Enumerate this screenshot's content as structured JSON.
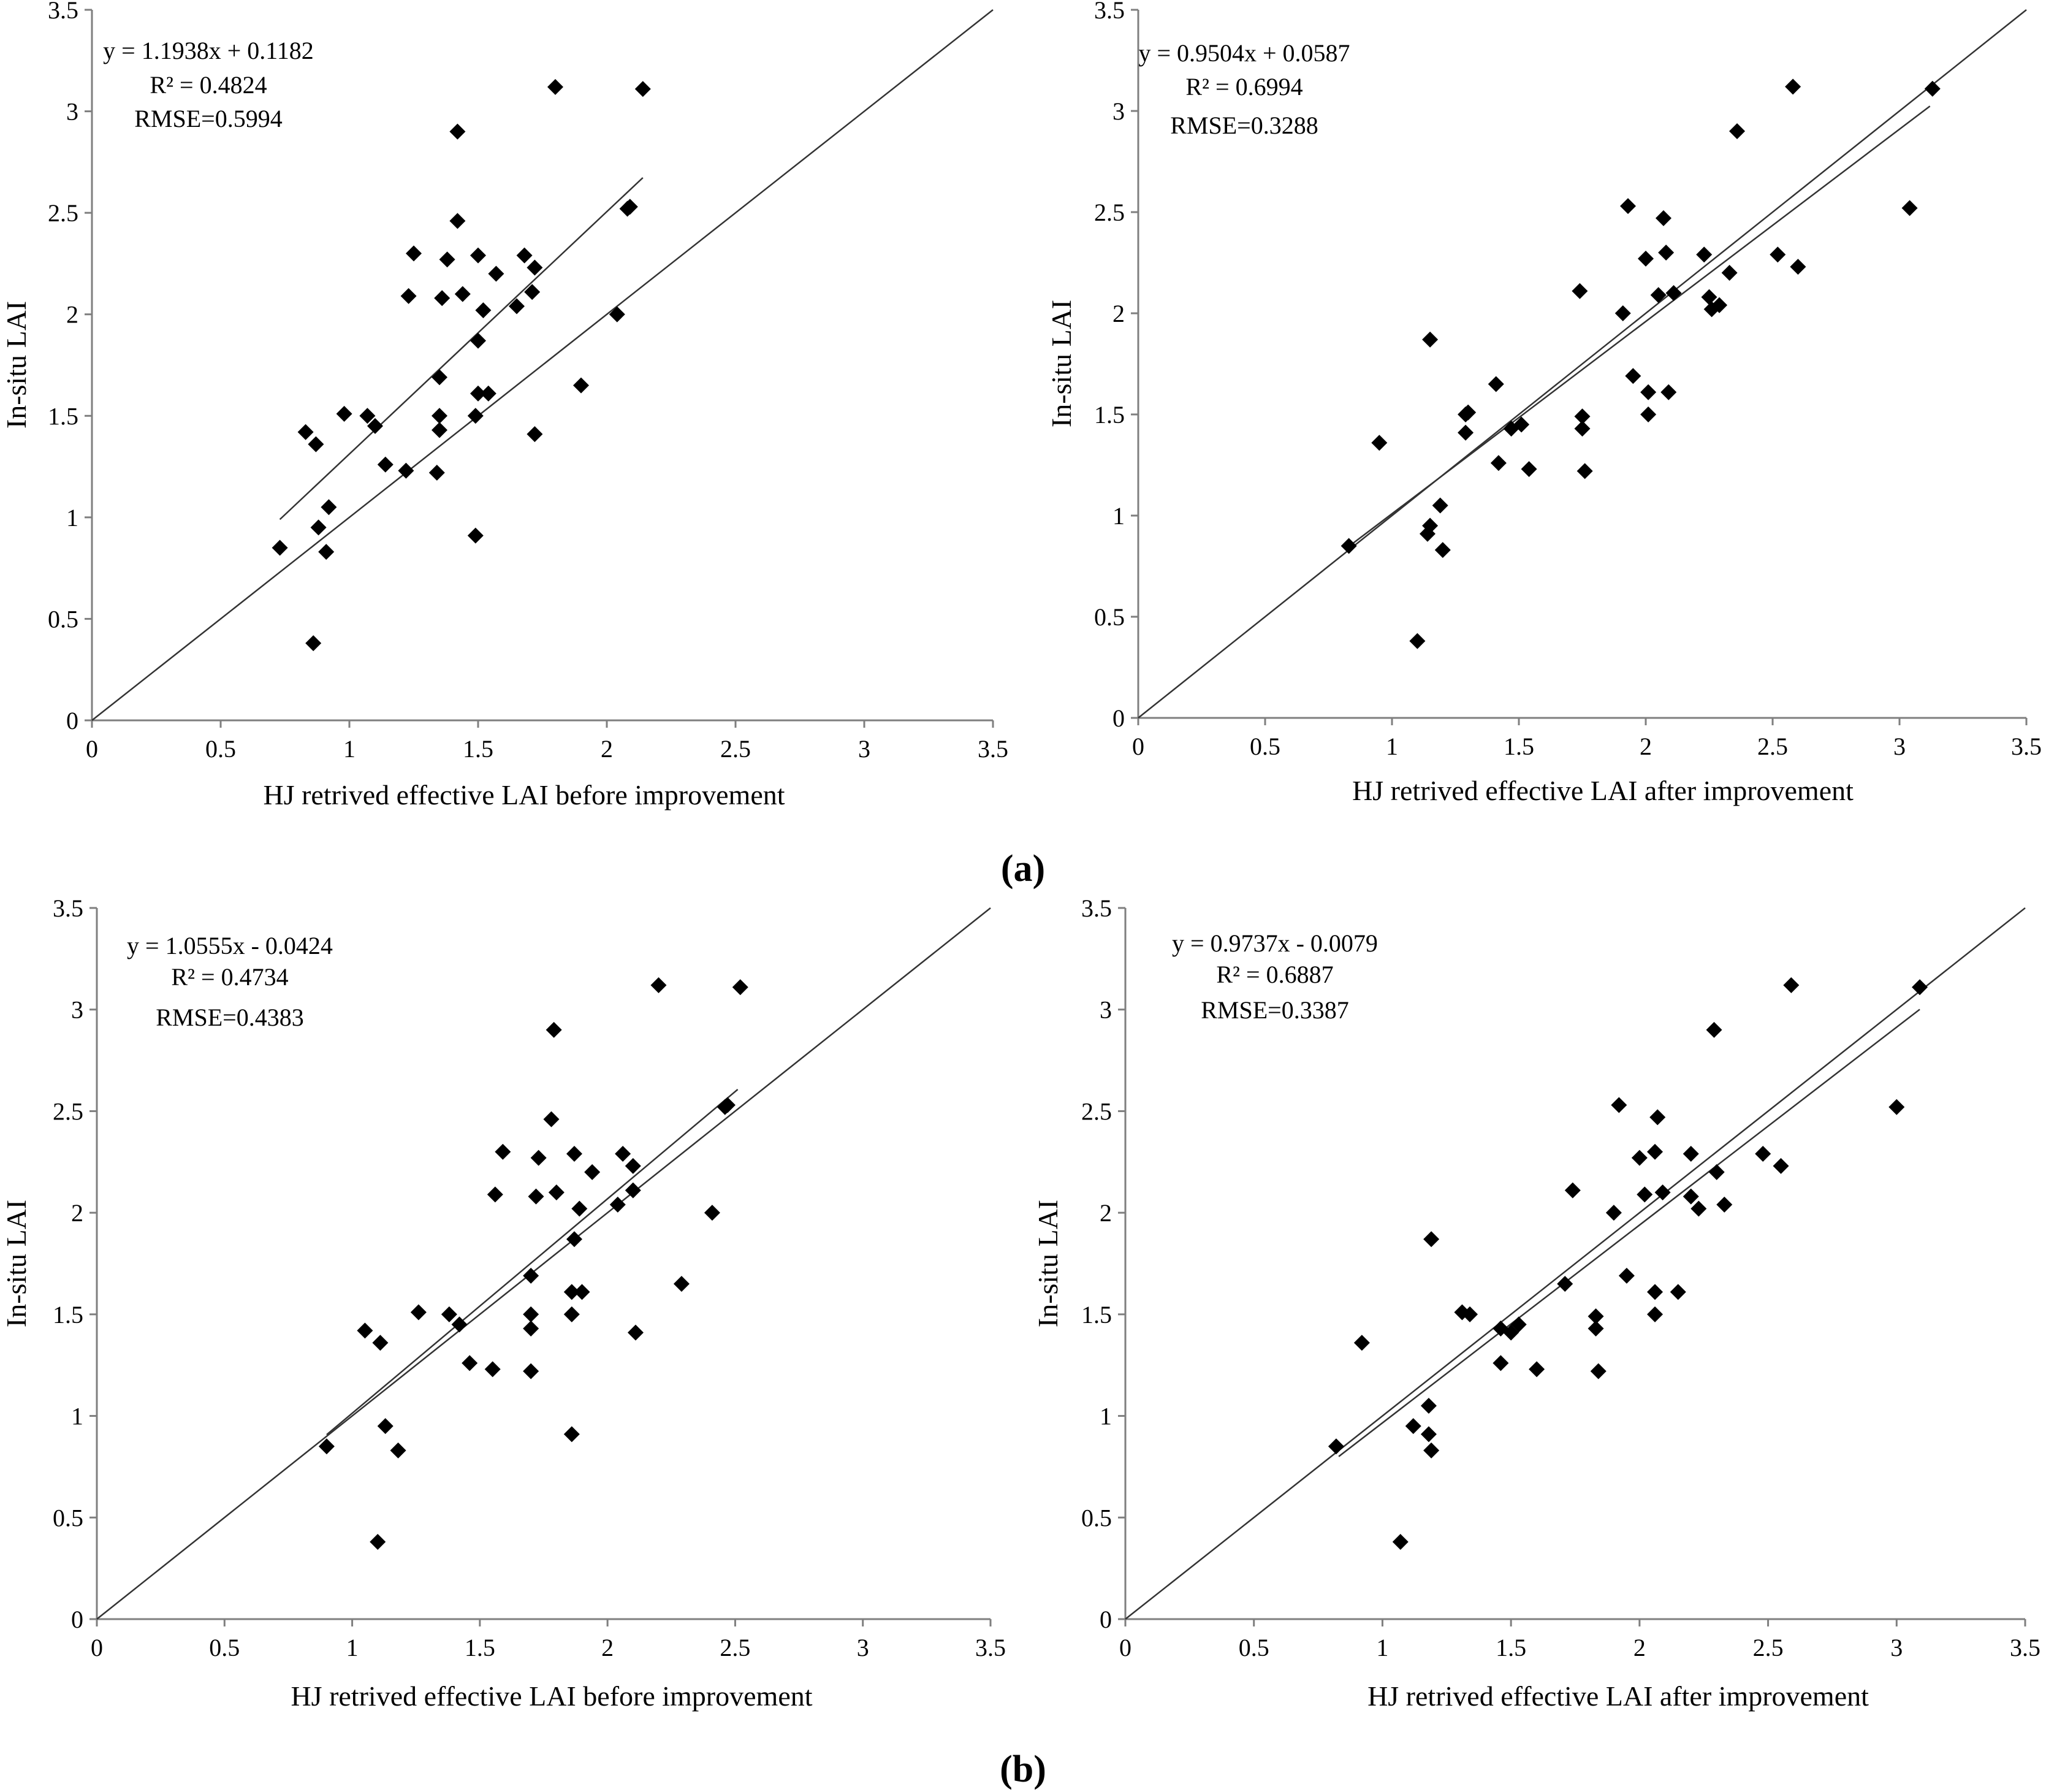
{
  "figure": {
    "panel_labels": [
      "(a)",
      "(b)"
    ]
  },
  "chart_data": [
    {
      "type": "scatter",
      "panel": "a",
      "xlabel": "HJ retrived effective LAI before improvement",
      "ylabel": "In-situ LAI",
      "xlim": [
        0,
        3.5
      ],
      "ylim": [
        0,
        3.5
      ],
      "xticks": [
        "0",
        "0.5",
        "1",
        "1.5",
        "2",
        "2.5",
        "3",
        "3.5"
      ],
      "yticks": [
        "0",
        "0.5",
        "1",
        "1.5",
        "2",
        "2.5",
        "3",
        "3.5"
      ],
      "grid": false,
      "annotations": [
        "y = 1.1938x + 0.1182",
        "R² = 0.4824",
        "RMSE=0.5994"
      ],
      "fit": {
        "slope": 1.1938,
        "intercept": 0.1182,
        "x_range": [
          0.73,
          2.14
        ]
      },
      "reference_line": "1:1",
      "points": [
        [
          0.73,
          0.85
        ],
        [
          0.83,
          1.42
        ],
        [
          0.86,
          0.38
        ],
        [
          0.87,
          1.36
        ],
        [
          0.88,
          0.95
        ],
        [
          0.91,
          0.83
        ],
        [
          0.92,
          1.05
        ],
        [
          0.98,
          1.51
        ],
        [
          1.07,
          1.5
        ],
        [
          1.1,
          1.45
        ],
        [
          1.14,
          1.26
        ],
        [
          1.22,
          1.23
        ],
        [
          1.23,
          2.09
        ],
        [
          1.25,
          2.3
        ],
        [
          1.34,
          1.22
        ],
        [
          1.35,
          1.69
        ],
        [
          1.35,
          1.5
        ],
        [
          1.35,
          1.43
        ],
        [
          1.36,
          2.08
        ],
        [
          1.38,
          2.27
        ],
        [
          1.42,
          2.9
        ],
        [
          1.42,
          2.46
        ],
        [
          1.44,
          2.1
        ],
        [
          1.49,
          0.91
        ],
        [
          1.49,
          1.5
        ],
        [
          1.5,
          1.87
        ],
        [
          1.5,
          1.61
        ],
        [
          1.5,
          2.29
        ],
        [
          1.52,
          2.02
        ],
        [
          1.54,
          1.61
        ],
        [
          1.57,
          2.2
        ],
        [
          1.65,
          2.04
        ],
        [
          1.68,
          2.29
        ],
        [
          1.71,
          2.11
        ],
        [
          1.72,
          2.23
        ],
        [
          1.72,
          1.41
        ],
        [
          1.8,
          3.12
        ],
        [
          1.9,
          1.65
        ],
        [
          2.04,
          2.0
        ],
        [
          2.08,
          2.52
        ],
        [
          2.09,
          2.53
        ],
        [
          2.14,
          3.11
        ]
      ]
    },
    {
      "type": "scatter",
      "panel": "a",
      "xlabel": "HJ retrived  effective LAI after improvement",
      "ylabel": "In-situ LAI",
      "xlim": [
        0,
        3.5
      ],
      "ylim": [
        0,
        3.5
      ],
      "xticks": [
        "0",
        "0.5",
        "1",
        "1.5",
        "2",
        "2.5",
        "3",
        "3.5"
      ],
      "yticks": [
        "0",
        "0.5",
        "1",
        "1.5",
        "2",
        "2.5",
        "3",
        "3.5"
      ],
      "grid": false,
      "annotations": [
        "y = 0.9504x + 0.0587",
        "R² = 0.6994",
        "RMSE=0.3288"
      ],
      "fit": {
        "slope": 0.9504,
        "intercept": 0.0587,
        "x_range": [
          0.84,
          3.12
        ]
      },
      "reference_line": "1:1",
      "points": [
        [
          0.83,
          0.85
        ],
        [
          0.95,
          1.36
        ],
        [
          1.1,
          0.38
        ],
        [
          1.14,
          0.91
        ],
        [
          1.15,
          0.95
        ],
        [
          1.15,
          1.87
        ],
        [
          1.19,
          1.05
        ],
        [
          1.2,
          0.83
        ],
        [
          1.29,
          1.5
        ],
        [
          1.29,
          1.41
        ],
        [
          1.3,
          1.51
        ],
        [
          1.41,
          1.65
        ],
        [
          1.42,
          1.26
        ],
        [
          1.47,
          1.43
        ],
        [
          1.51,
          1.45
        ],
        [
          1.54,
          1.23
        ],
        [
          1.74,
          2.11
        ],
        [
          1.75,
          1.49
        ],
        [
          1.75,
          1.43
        ],
        [
          1.76,
          1.22
        ],
        [
          1.91,
          2.0
        ],
        [
          1.93,
          2.53
        ],
        [
          1.95,
          1.69
        ],
        [
          2.0,
          2.27
        ],
        [
          2.01,
          1.61
        ],
        [
          2.01,
          1.5
        ],
        [
          2.05,
          2.09
        ],
        [
          2.07,
          2.47
        ],
        [
          2.08,
          2.3
        ],
        [
          2.09,
          1.61
        ],
        [
          2.11,
          2.1
        ],
        [
          2.23,
          2.29
        ],
        [
          2.25,
          2.08
        ],
        [
          2.26,
          2.02
        ],
        [
          2.29,
          2.04
        ],
        [
          2.33,
          2.2
        ],
        [
          2.36,
          2.9
        ],
        [
          2.52,
          2.29
        ],
        [
          2.58,
          3.12
        ],
        [
          2.6,
          2.23
        ],
        [
          3.04,
          2.52
        ],
        [
          3.13,
          3.11
        ]
      ]
    },
    {
      "type": "scatter",
      "panel": "b",
      "xlabel": "HJ retrived  effective LAI before improvement",
      "ylabel": "In-situ LAI",
      "xlim": [
        0,
        3.5
      ],
      "ylim": [
        0,
        3.5
      ],
      "xticks": [
        "0",
        "0.5",
        "1",
        "1.5",
        "2",
        "2.5",
        "3",
        "3.5"
      ],
      "yticks": [
        "0",
        "0.5",
        "1",
        "1.5",
        "2",
        "2.5",
        "3",
        "3.5"
      ],
      "grid": false,
      "annotations": [
        "y = 1.0555x - 0.0424",
        "R² = 0.4734",
        "RMSE=0.4383"
      ],
      "fit": {
        "slope": 1.0555,
        "intercept": -0.0424,
        "x_range": [
          0.9,
          2.51
        ]
      },
      "reference_line": "1:1",
      "points": [
        [
          0.9,
          0.85
        ],
        [
          1.05,
          1.42
        ],
        [
          1.1,
          0.38
        ],
        [
          1.11,
          1.36
        ],
        [
          1.13,
          0.95
        ],
        [
          1.18,
          0.83
        ],
        [
          1.26,
          1.51
        ],
        [
          1.38,
          1.5
        ],
        [
          1.42,
          1.45
        ],
        [
          1.46,
          1.26
        ],
        [
          1.55,
          1.23
        ],
        [
          1.56,
          2.09
        ],
        [
          1.59,
          2.3
        ],
        [
          1.7,
          1.22
        ],
        [
          1.7,
          1.69
        ],
        [
          1.7,
          1.5
        ],
        [
          1.7,
          1.43
        ],
        [
          1.72,
          2.08
        ],
        [
          1.73,
          2.27
        ],
        [
          1.78,
          2.46
        ],
        [
          1.79,
          2.9
        ],
        [
          1.8,
          2.1
        ],
        [
          1.86,
          0.91
        ],
        [
          1.86,
          1.5
        ],
        [
          1.86,
          1.61
        ],
        [
          1.87,
          1.87
        ],
        [
          1.87,
          2.29
        ],
        [
          1.89,
          2.02
        ],
        [
          1.9,
          1.61
        ],
        [
          1.94,
          2.2
        ],
        [
          2.04,
          2.04
        ],
        [
          2.06,
          2.29
        ],
        [
          2.1,
          2.11
        ],
        [
          2.1,
          2.23
        ],
        [
          2.11,
          1.41
        ],
        [
          2.2,
          3.12
        ],
        [
          2.29,
          1.65
        ],
        [
          2.41,
          2.0
        ],
        [
          2.46,
          2.52
        ],
        [
          2.47,
          2.53
        ],
        [
          2.52,
          3.11
        ]
      ]
    },
    {
      "type": "scatter",
      "panel": "b",
      "xlabel": "HJ retrived effective LAI after improvement",
      "ylabel": "In-situ LAI",
      "xlim": [
        0,
        3.5
      ],
      "ylim": [
        0,
        3.5
      ],
      "xticks": [
        "0",
        "0.5",
        "1",
        "1.5",
        "2",
        "2.5",
        "3",
        "3.5"
      ],
      "yticks": [
        "0",
        "0.5",
        "1",
        "1.5",
        "2",
        "2.5",
        "3",
        "3.5"
      ],
      "grid": false,
      "annotations": [
        "y = 0.9737x - 0.0079",
        "R² = 0.6887",
        "RMSE=0.3387"
      ],
      "fit": {
        "slope": 0.9737,
        "intercept": -0.0079,
        "x_range": [
          0.83,
          3.09
        ]
      },
      "reference_line": "1:1",
      "points": [
        [
          0.82,
          0.85
        ],
        [
          0.92,
          1.36
        ],
        [
          1.07,
          0.38
        ],
        [
          1.12,
          0.95
        ],
        [
          1.18,
          0.91
        ],
        [
          1.18,
          1.05
        ],
        [
          1.19,
          0.83
        ],
        [
          1.19,
          1.87
        ],
        [
          1.31,
          1.51
        ],
        [
          1.34,
          1.5
        ],
        [
          1.46,
          1.43
        ],
        [
          1.46,
          1.26
        ],
        [
          1.5,
          1.41
        ],
        [
          1.53,
          1.45
        ],
        [
          1.6,
          1.23
        ],
        [
          1.71,
          1.65
        ],
        [
          1.74,
          2.11
        ],
        [
          1.83,
          1.49
        ],
        [
          1.83,
          1.43
        ],
        [
          1.84,
          1.22
        ],
        [
          1.9,
          2.0
        ],
        [
          1.92,
          2.53
        ],
        [
          1.95,
          1.69
        ],
        [
          2.0,
          2.27
        ],
        [
          2.02,
          2.09
        ],
        [
          2.06,
          2.3
        ],
        [
          2.06,
          1.61
        ],
        [
          2.06,
          1.5
        ],
        [
          2.07,
          2.47
        ],
        [
          2.09,
          2.1
        ],
        [
          2.15,
          1.61
        ],
        [
          2.2,
          2.29
        ],
        [
          2.2,
          2.08
        ],
        [
          2.23,
          2.02
        ],
        [
          2.29,
          2.9
        ],
        [
          2.3,
          2.2
        ],
        [
          2.33,
          2.04
        ],
        [
          2.48,
          2.29
        ],
        [
          2.55,
          2.23
        ],
        [
          2.59,
          3.12
        ],
        [
          3.0,
          2.52
        ],
        [
          3.09,
          3.11
        ]
      ]
    }
  ]
}
